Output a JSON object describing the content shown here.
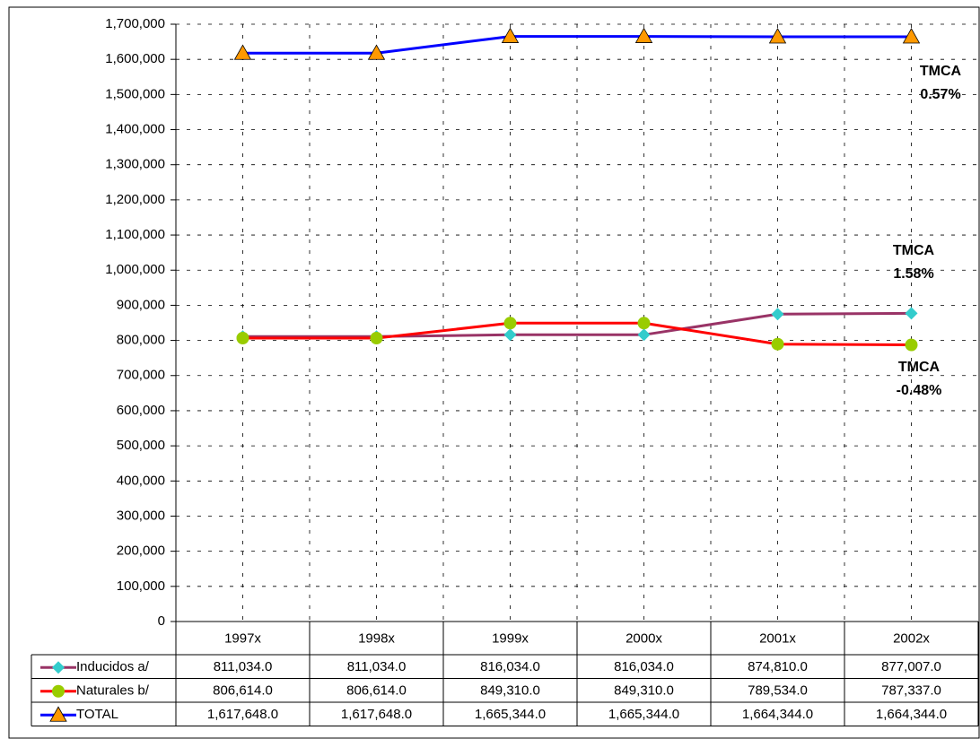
{
  "chart_data": {
    "type": "line",
    "categories": [
      "1997x",
      "1998x",
      "1999x",
      "2000x",
      "2001x",
      "2002x"
    ],
    "series": [
      {
        "name": "Inducidos a/",
        "color": "#993366",
        "marker": "diamond",
        "marker_color": "#33CCCC",
        "values": [
          811034,
          811034,
          816034,
          816034,
          874810,
          877007
        ],
        "value_labels": [
          "811,034.0",
          "811,034.0",
          "816,034.0",
          "816,034.0",
          "874,810.0",
          "877,007.0"
        ]
      },
      {
        "name": "Naturales b/",
        "color": "#FF0000",
        "marker": "circle",
        "marker_color": "#99CC00",
        "values": [
          806614,
          806614,
          849310,
          849310,
          789534,
          787337
        ],
        "value_labels": [
          "806,614.0",
          "806,614.0",
          "849,310.0",
          "849,310.0",
          "789,534.0",
          "787,337.0"
        ]
      },
      {
        "name": "TOTAL",
        "color": "#0000FF",
        "marker": "triangle",
        "marker_color": "#FF9900",
        "values": [
          1617648,
          1617648,
          1665344,
          1665344,
          1664344,
          1664344
        ],
        "value_labels": [
          "1,617,648.0",
          "1,617,648.0",
          "1,665,344.0",
          "1,665,344.0",
          "1,664,344.0",
          "1,664,344.0"
        ]
      }
    ],
    "ylim": [
      0,
      1700000
    ],
    "yticks": [
      0,
      {
        "value": 100000,
        "label": "100,000"
      },
      {
        "value": 200000,
        "label": "200,000"
      },
      {
        "value": 300000,
        "label": "300,000"
      },
      {
        "value": 400000,
        "label": "400,000"
      },
      {
        "value": 500000,
        "label": "500,000"
      },
      {
        "value": 600000,
        "label": "600,000"
      },
      {
        "value": 700000,
        "label": "700,000"
      },
      {
        "value": 800000,
        "label": "800,000"
      },
      {
        "value": 900000,
        "label": "900,000"
      },
      {
        "value": 1000000,
        "label": "1,000,000"
      },
      {
        "value": 1100000,
        "label": "1,100,000"
      },
      {
        "value": 1200000,
        "label": "1,200,000"
      },
      {
        "value": 1300000,
        "label": "1,300,000"
      },
      {
        "value": 1400000,
        "label": "1,400,000"
      },
      {
        "value": 1500000,
        "label": "1,500,000"
      },
      {
        "value": 1600000,
        "label": "1,600,000"
      },
      {
        "value": 1700000,
        "label": "1,700,000"
      }
    ],
    "grid": true,
    "annotations": [
      [
        "TMCA",
        "0.57%"
      ],
      [
        "TMCA",
        "1.58%"
      ],
      [
        "TMCA",
        "-0.48%"
      ]
    ]
  }
}
